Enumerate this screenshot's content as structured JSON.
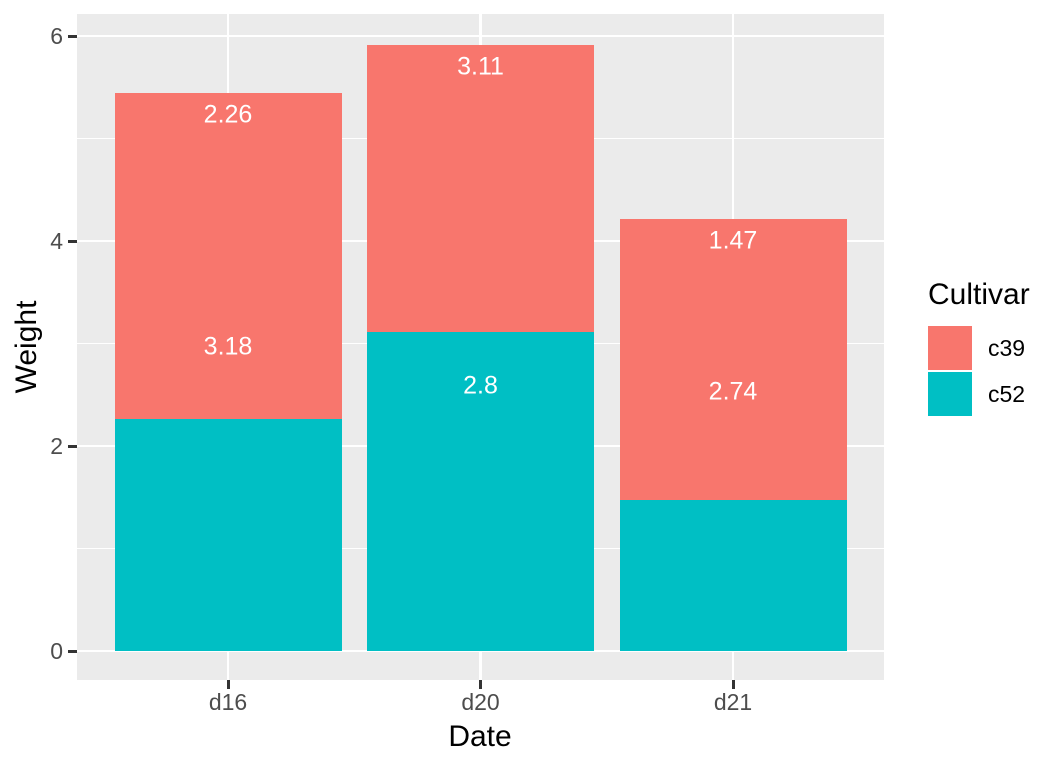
{
  "chart_data": {
    "type": "bar",
    "stacked": true,
    "xlabel": "Date",
    "ylabel": "Weight",
    "categories": [
      "d16",
      "d20",
      "d21"
    ],
    "series": [
      {
        "name": "c52",
        "color": "#00BFC4",
        "values": [
          2.26,
          3.11,
          1.47
        ]
      },
      {
        "name": "c39",
        "color": "#F8766D",
        "values": [
          3.18,
          2.8,
          2.74
        ]
      }
    ],
    "bar_labels": [
      [
        {
          "text": "2.26",
          "anchor_value": 5.44
        },
        {
          "text": "3.18",
          "anchor_value": 3.18
        }
      ],
      [
        {
          "text": "3.11",
          "anchor_value": 5.91
        },
        {
          "text": "2.8",
          "anchor_value": 2.8
        }
      ],
      [
        {
          "text": "1.47",
          "anchor_value": 4.21
        },
        {
          "text": "2.74",
          "anchor_value": 2.74
        }
      ]
    ],
    "y_axis": {
      "tick_labels": [
        "0",
        "2",
        "4",
        "6"
      ],
      "tick_values": [
        0,
        2,
        4,
        6
      ],
      "minor_values": [
        1,
        3,
        5
      ],
      "range": [
        0,
        6.2
      ]
    },
    "legend": {
      "title": "Cultivar",
      "position": "right",
      "entries": [
        {
          "label": "c39",
          "color": "#F8766D"
        },
        {
          "label": "c52",
          "color": "#00BFC4"
        }
      ]
    },
    "colors": {
      "panel_background": "#EBEBEB",
      "gridline": "#FFFFFF",
      "axis_text": "#4D4D4D",
      "axis_title": "#000000",
      "tick_mark": "#333333",
      "bar_label_text": "#FFFFFF"
    }
  }
}
